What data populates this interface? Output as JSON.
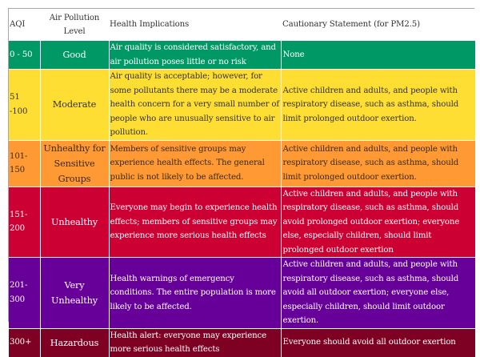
{
  "table": {
    "headers": {
      "aqi": "AQI",
      "level": "Air Pollution Level",
      "health": "Health Implications",
      "caution": "Cautionary Statement (for PM2.5)"
    },
    "rows": [
      {
        "aqi": "0 - 50",
        "level": "Good",
        "health": "Air quality is considered satisfactory, and air pollution poses little or no risk",
        "caution": "None",
        "bg": "#009966",
        "fg": "#ffffff"
      },
      {
        "aqi": "51 -100",
        "level": "Moderate",
        "health": "Air quality is acceptable; however, for some pollutants there may be a moderate health concern for a very small number of people who are unusually sensitive to air pollution.",
        "caution": "Active children and adults, and people with respiratory disease, such as asthma, should limit prolonged outdoor exertion.",
        "bg": "#ffde33",
        "fg": "#333333"
      },
      {
        "aqi": "101-150",
        "level": "Unhealthy for Sensitive Groups",
        "health": "Members of sensitive groups may experience health effects. The general public is not likely to be affected.",
        "caution": "Active children and adults, and people with respiratory disease, such as asthma, should limit prolonged outdoor exertion.",
        "bg": "#ff9933",
        "fg": "#3a2a1a"
      },
      {
        "aqi": "151-200",
        "level": "Unhealthy",
        "health": "Everyone may begin to experience health effects; members of sensitive groups may experience more serious health effects",
        "caution": "Active children and adults, and people with respiratory disease, such as asthma, should avoid prolonged outdoor exertion; everyone else, especially children, should limit prolonged outdoor exertion",
        "bg": "#cc0033",
        "fg": "#ffffff"
      },
      {
        "aqi": "201-300",
        "level": "Very Unhealthy",
        "health": "Health warnings of emergency conditions. The entire population is more likely to be affected.",
        "caution": "Active children and adults, and people with respiratory disease, such as asthma, should avoid all outdoor exertion; everyone else, especially children, should limit outdoor exertion.",
        "bg": "#660099",
        "fg": "#ffffff"
      },
      {
        "aqi": "300+",
        "level": "Hazardous",
        "health": "Health alert: everyone may experience more serious health effects",
        "caution": "Everyone should avoid all outdoor exertion",
        "bg": "#7e0023",
        "fg": "#ffffff"
      }
    ]
  }
}
